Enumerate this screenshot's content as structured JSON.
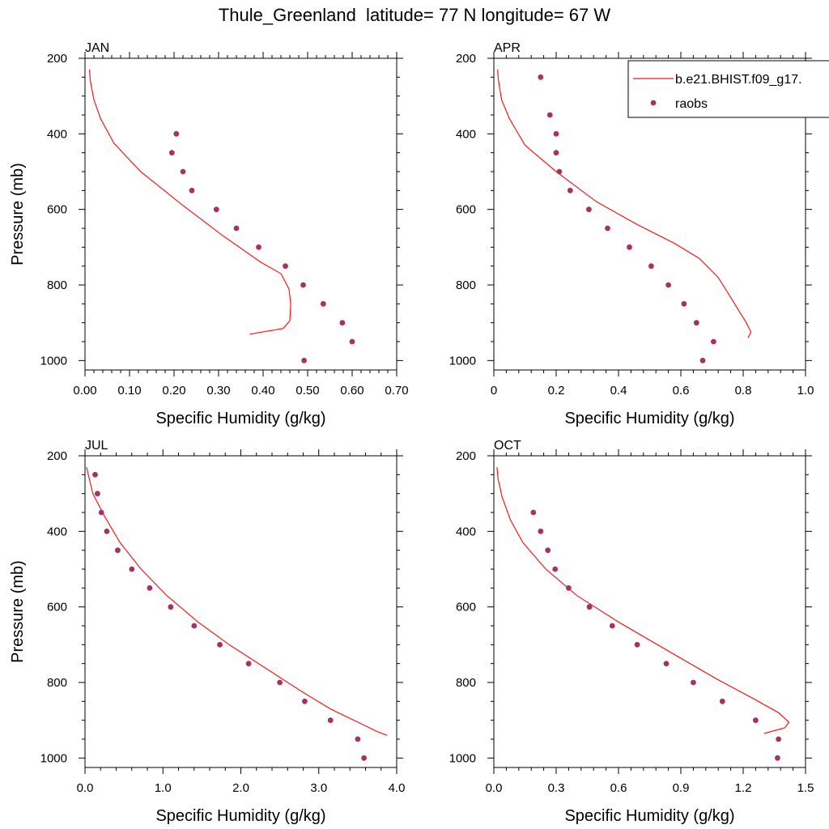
{
  "title": "Thule_Greenland  latitude= 77 N longitude= 67 W",
  "colors": {
    "model_line": "#ee1c1c",
    "obs_marker": "#a8325e",
    "axis": "#000000"
  },
  "legend": {
    "placement": "top-right of APR panel",
    "entries": [
      {
        "label": "b.e21.BHIST.f09_g17.",
        "style": "line",
        "color": "#ee1c1c"
      },
      {
        "label": "raobs",
        "style": "marker",
        "color": "#a8325e"
      }
    ]
  },
  "chart_data": [
    {
      "type": "line",
      "panel": "JAN",
      "xlabel": "Specific Humidity (g/kg)",
      "ylabel": "Pressure (mb)",
      "xlim": [
        0,
        0.7
      ],
      "ylim": [
        200,
        1025
      ],
      "y_inverted": true,
      "xticks": [
        0,
        0.1,
        0.2,
        0.3,
        0.4,
        0.5,
        0.6,
        0.7
      ],
      "xtick_labels": [
        "0.00",
        "0.10",
        "0.20",
        "0.30",
        "0.40",
        "0.50",
        "0.60",
        "0.70"
      ],
      "yticks": [
        200,
        400,
        600,
        800,
        1000
      ],
      "ytick_labels": [
        "200",
        "400",
        "600",
        "800",
        "1000"
      ],
      "series": [
        {
          "name": "b.e21.BHIST.f09_g17.",
          "style": "line",
          "x": [
            0.01,
            0.012,
            0.02,
            0.035,
            0.065,
            0.125,
            0.215,
            0.31,
            0.395,
            0.44,
            0.458,
            0.462,
            0.46,
            0.445,
            0.37
          ],
          "y": [
            230,
            260,
            310,
            360,
            425,
            500,
            585,
            670,
            740,
            770,
            810,
            850,
            895,
            915,
            930
          ]
        },
        {
          "name": "raobs",
          "style": "marker",
          "x": [
            0.205,
            0.195,
            0.22,
            0.24,
            0.295,
            0.34,
            0.39,
            0.45,
            0.49,
            0.535,
            0.578,
            0.6,
            0.492
          ],
          "y": [
            400,
            450,
            500,
            550,
            600,
            650,
            700,
            750,
            800,
            850,
            900,
            950,
            1000
          ]
        }
      ]
    },
    {
      "type": "line",
      "panel": "APR",
      "xlabel": "Specific Humidity (g/kg)",
      "ylabel": "",
      "xlim": [
        0,
        1.0
      ],
      "ylim": [
        200,
        1025
      ],
      "y_inverted": true,
      "xticks": [
        0,
        0.2,
        0.4,
        0.6,
        0.8,
        1.0
      ],
      "xtick_labels": [
        "0",
        "0.2",
        "0.4",
        "0.6",
        "0.8",
        "1.0"
      ],
      "yticks": [
        200,
        400,
        600,
        800,
        1000
      ],
      "ytick_labels": [
        "200",
        "400",
        "600",
        "800",
        "1000"
      ],
      "series": [
        {
          "name": "b.e21.BHIST.f09_g17.",
          "style": "line",
          "x": [
            0.012,
            0.015,
            0.025,
            0.05,
            0.1,
            0.2,
            0.33,
            0.46,
            0.58,
            0.66,
            0.72,
            0.75,
            0.78,
            0.81,
            0.825,
            0.815
          ],
          "y": [
            230,
            260,
            310,
            360,
            430,
            500,
            580,
            640,
            690,
            730,
            780,
            820,
            860,
            900,
            925,
            940
          ]
        },
        {
          "name": "raobs",
          "style": "marker",
          "x": [
            0.15,
            0.18,
            0.2,
            0.2,
            0.21,
            0.245,
            0.305,
            0.365,
            0.435,
            0.505,
            0.56,
            0.61,
            0.65,
            0.705,
            0.67
          ],
          "y": [
            250,
            350,
            400,
            450,
            500,
            550,
            600,
            650,
            700,
            750,
            800,
            850,
            900,
            950,
            1000
          ]
        }
      ]
    },
    {
      "type": "line",
      "panel": "JUL",
      "xlabel": "Specific Humidity (g/kg)",
      "ylabel": "Pressure (mb)",
      "xlim": [
        0,
        4.0
      ],
      "ylim": [
        200,
        1025
      ],
      "y_inverted": true,
      "xticks": [
        0,
        1,
        2,
        3,
        4
      ],
      "xtick_labels": [
        "0.0",
        "1.0",
        "2.0",
        "3.0",
        "4.0"
      ],
      "yticks": [
        200,
        400,
        600,
        800,
        1000
      ],
      "ytick_labels": [
        "200",
        "400",
        "600",
        "800",
        "1000"
      ],
      "series": [
        {
          "name": "b.e21.BHIST.f09_g17.",
          "style": "line",
          "x": [
            0.02,
            0.1,
            0.25,
            0.45,
            0.72,
            1.05,
            1.45,
            1.85,
            2.3,
            2.75,
            3.15,
            3.5,
            3.75,
            3.88
          ],
          "y": [
            230,
            300,
            360,
            430,
            500,
            570,
            640,
            700,
            760,
            820,
            870,
            905,
            930,
            940
          ]
        },
        {
          "name": "raobs",
          "style": "marker",
          "x": [
            0.13,
            0.16,
            0.21,
            0.28,
            0.42,
            0.6,
            0.83,
            1.1,
            1.4,
            1.73,
            2.1,
            2.5,
            2.82,
            3.15,
            3.5,
            3.58
          ],
          "y": [
            250,
            300,
            350,
            400,
            450,
            500,
            550,
            600,
            650,
            700,
            750,
            800,
            850,
            900,
            950,
            1000
          ]
        }
      ]
    },
    {
      "type": "line",
      "panel": "OCT",
      "xlabel": "Specific Humidity (g/kg)",
      "ylabel": "",
      "xlim": [
        0,
        1.5
      ],
      "ylim": [
        200,
        1025
      ],
      "y_inverted": true,
      "xticks": [
        0,
        0.3,
        0.6,
        0.9,
        1.2,
        1.5
      ],
      "xtick_labels": [
        "0.0",
        "0.3",
        "0.6",
        "0.9",
        "1.2",
        "1.5"
      ],
      "yticks": [
        200,
        400,
        600,
        800,
        1000
      ],
      "ytick_labels": [
        "200",
        "400",
        "600",
        "800",
        "1000"
      ],
      "series": [
        {
          "name": "b.e21.BHIST.f09_g17.",
          "style": "line",
          "x": [
            0.015,
            0.02,
            0.04,
            0.08,
            0.14,
            0.25,
            0.4,
            0.6,
            0.85,
            1.07,
            1.24,
            1.37,
            1.42,
            1.4,
            1.3
          ],
          "y": [
            230,
            260,
            310,
            370,
            430,
            500,
            570,
            640,
            720,
            790,
            840,
            880,
            905,
            920,
            935
          ]
        },
        {
          "name": "raobs",
          "style": "marker",
          "x": [
            0.19,
            0.225,
            0.26,
            0.295,
            0.36,
            0.46,
            0.57,
            0.69,
            0.83,
            0.96,
            1.1,
            1.26,
            1.37,
            1.365
          ],
          "y": [
            350,
            400,
            450,
            500,
            550,
            600,
            650,
            700,
            750,
            800,
            850,
            900,
            950,
            1000
          ]
        }
      ]
    }
  ]
}
